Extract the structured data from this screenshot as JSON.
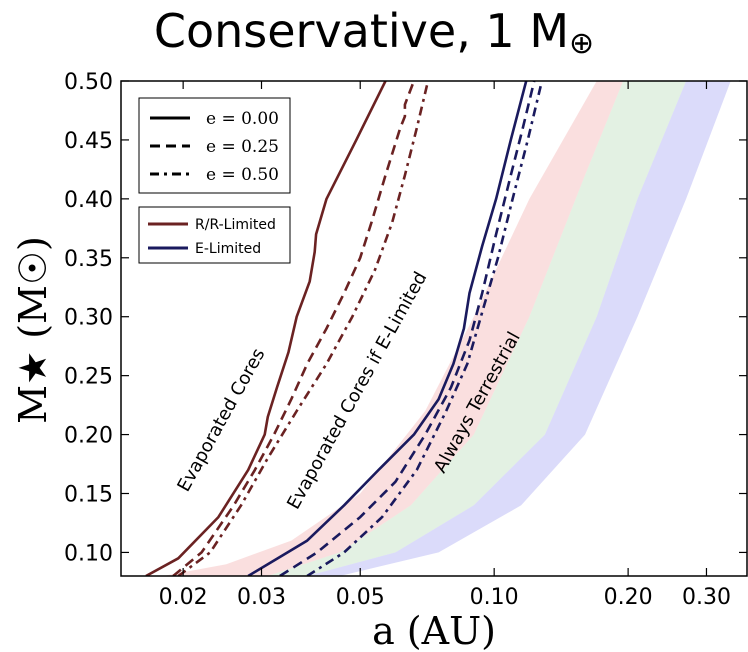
{
  "chart_data": {
    "type": "area",
    "title": "Conservative, 1 M",
    "title_sub": "⊕",
    "xlabel": "a (AU)",
    "ylabel": "M★ (M☉)",
    "xscale": "log",
    "xlim": [
      0.0145,
      0.37
    ],
    "ylim": [
      0.08,
      0.5
    ],
    "xticks": [
      {
        "value": 0.02,
        "label": "0.02"
      },
      {
        "value": 0.03,
        "label": "0.03"
      },
      {
        "value": 0.05,
        "label": "0.05"
      },
      {
        "value": 0.1,
        "label": "0.10"
      },
      {
        "value": 0.2,
        "label": "0.20"
      },
      {
        "value": 0.3,
        "label": "0.30"
      }
    ],
    "yticks": [
      {
        "value": 0.1,
        "label": "0.10"
      },
      {
        "value": 0.15,
        "label": "0.15"
      },
      {
        "value": 0.2,
        "label": "0.20"
      },
      {
        "value": 0.25,
        "label": "0.25"
      },
      {
        "value": 0.3,
        "label": "0.30"
      },
      {
        "value": 0.35,
        "label": "0.35"
      },
      {
        "value": 0.4,
        "label": "0.40"
      },
      {
        "value": 0.45,
        "label": "0.45"
      },
      {
        "value": 0.5,
        "label": "0.50"
      }
    ],
    "bands": [
      {
        "color": "#f5b8b8",
        "opacity": 0.45,
        "left": [
          [
            0.018,
            0.08
          ],
          [
            0.025,
            0.09
          ],
          [
            0.035,
            0.11
          ],
          [
            0.05,
            0.15
          ],
          [
            0.07,
            0.22
          ],
          [
            0.09,
            0.3
          ],
          [
            0.12,
            0.4
          ],
          [
            0.17,
            0.5
          ]
        ],
        "right": [
          [
            0.031,
            0.08
          ],
          [
            0.045,
            0.1
          ],
          [
            0.065,
            0.14
          ],
          [
            0.09,
            0.2
          ],
          [
            0.12,
            0.3
          ],
          [
            0.16,
            0.42
          ],
          [
            0.195,
            0.5
          ]
        ]
      },
      {
        "color": "#b8ddb8",
        "opacity": 0.4,
        "left": [
          [
            0.031,
            0.08
          ],
          [
            0.045,
            0.1
          ],
          [
            0.065,
            0.14
          ],
          [
            0.09,
            0.2
          ],
          [
            0.12,
            0.3
          ],
          [
            0.16,
            0.42
          ],
          [
            0.195,
            0.5
          ]
        ],
        "right": [
          [
            0.038,
            0.08
          ],
          [
            0.06,
            0.1
          ],
          [
            0.09,
            0.14
          ],
          [
            0.13,
            0.2
          ],
          [
            0.17,
            0.3
          ],
          [
            0.21,
            0.4
          ],
          [
            0.27,
            0.5
          ]
        ]
      },
      {
        "color": "#b8b8f5",
        "opacity": 0.5,
        "left": [
          [
            0.038,
            0.08
          ],
          [
            0.06,
            0.1
          ],
          [
            0.09,
            0.14
          ],
          [
            0.13,
            0.2
          ],
          [
            0.17,
            0.3
          ],
          [
            0.21,
            0.4
          ],
          [
            0.27,
            0.5
          ]
        ],
        "right": [
          [
            0.045,
            0.08
          ],
          [
            0.075,
            0.1
          ],
          [
            0.115,
            0.14
          ],
          [
            0.16,
            0.2
          ],
          [
            0.21,
            0.3
          ],
          [
            0.27,
            0.4
          ],
          [
            0.34,
            0.5
          ]
        ]
      }
    ],
    "series": [
      {
        "group": "R/R-Limited",
        "ecc": "e = 0.00",
        "color": "#6b2222",
        "dash": "solid",
        "points": [
          [
            0.0165,
            0.08
          ],
          [
            0.0195,
            0.095
          ],
          [
            0.024,
            0.13
          ],
          [
            0.028,
            0.17
          ],
          [
            0.0305,
            0.2
          ],
          [
            0.031,
            0.215
          ],
          [
            0.0325,
            0.24
          ],
          [
            0.0345,
            0.27
          ],
          [
            0.036,
            0.3
          ],
          [
            0.0385,
            0.33
          ],
          [
            0.0395,
            0.355
          ],
          [
            0.0398,
            0.37
          ],
          [
            0.042,
            0.4
          ],
          [
            0.049,
            0.45
          ],
          [
            0.057,
            0.5
          ]
        ]
      },
      {
        "group": "R/R-Limited",
        "ecc": "e = 0.25",
        "color": "#6b2222",
        "dash": "dashed",
        "points": [
          [
            0.019,
            0.08
          ],
          [
            0.022,
            0.1
          ],
          [
            0.026,
            0.14
          ],
          [
            0.029,
            0.17
          ],
          [
            0.032,
            0.2
          ],
          [
            0.035,
            0.23
          ],
          [
            0.038,
            0.26
          ],
          [
            0.042,
            0.29
          ],
          [
            0.046,
            0.32
          ],
          [
            0.05,
            0.35
          ],
          [
            0.053,
            0.38
          ],
          [
            0.057,
            0.42
          ],
          [
            0.0615,
            0.46
          ],
          [
            0.063,
            0.47
          ],
          [
            0.063,
            0.48
          ],
          [
            0.066,
            0.5
          ]
        ]
      },
      {
        "group": "R/R-Limited",
        "ecc": "e = 0.50",
        "color": "#6b2222",
        "dash": "dashdot",
        "points": [
          [
            0.0195,
            0.08
          ],
          [
            0.023,
            0.1
          ],
          [
            0.027,
            0.14
          ],
          [
            0.031,
            0.18
          ],
          [
            0.036,
            0.22
          ],
          [
            0.042,
            0.26
          ],
          [
            0.048,
            0.3
          ],
          [
            0.054,
            0.34
          ],
          [
            0.059,
            0.38
          ],
          [
            0.063,
            0.42
          ],
          [
            0.067,
            0.46
          ],
          [
            0.071,
            0.5
          ]
        ]
      },
      {
        "group": "E-Limited",
        "ecc": "e = 0.00",
        "color": "#1a1a5e",
        "dash": "solid",
        "points": [
          [
            0.028,
            0.08
          ],
          [
            0.031,
            0.09
          ],
          [
            0.038,
            0.11
          ],
          [
            0.046,
            0.14
          ],
          [
            0.055,
            0.17
          ],
          [
            0.066,
            0.2
          ],
          [
            0.075,
            0.23
          ],
          [
            0.081,
            0.26
          ],
          [
            0.0855,
            0.29
          ],
          [
            0.088,
            0.32
          ],
          [
            0.094,
            0.36
          ],
          [
            0.101,
            0.4
          ],
          [
            0.109,
            0.45
          ],
          [
            0.118,
            0.5
          ]
        ]
      },
      {
        "group": "E-Limited",
        "ecc": "e = 0.25",
        "color": "#1a1a5e",
        "dash": "dashed",
        "points": [
          [
            0.033,
            0.08
          ],
          [
            0.04,
            0.1
          ],
          [
            0.05,
            0.13
          ],
          [
            0.06,
            0.16
          ],
          [
            0.07,
            0.2
          ],
          [
            0.08,
            0.24
          ],
          [
            0.088,
            0.28
          ],
          [
            0.094,
            0.32
          ],
          [
            0.101,
            0.37
          ],
          [
            0.109,
            0.42
          ],
          [
            0.116,
            0.46
          ],
          [
            0.123,
            0.5
          ]
        ]
      },
      {
        "group": "E-Limited",
        "ecc": "e = 0.50",
        "color": "#1a1a5e",
        "dash": "dashdot",
        "points": [
          [
            0.038,
            0.08
          ],
          [
            0.046,
            0.1
          ],
          [
            0.056,
            0.13
          ],
          [
            0.067,
            0.17
          ],
          [
            0.078,
            0.22
          ],
          [
            0.087,
            0.26
          ],
          [
            0.095,
            0.31
          ],
          [
            0.102,
            0.35
          ],
          [
            0.11,
            0.4
          ],
          [
            0.119,
            0.45
          ],
          [
            0.128,
            0.5
          ]
        ]
      }
    ],
    "annotations": [
      {
        "text": "Evaporated Cores",
        "x": 0.025,
        "y": 0.21,
        "angle": -61
      },
      {
        "text": "Evaporated Cores if E-Limited",
        "x": 0.0505,
        "y": 0.235,
        "angle": -61
      },
      {
        "text": "Always Terrestrial",
        "x": 0.094,
        "y": 0.225,
        "angle": -61
      }
    ],
    "legend_ecc": {
      "placement": "top-left",
      "entries": [
        {
          "label": "e = 0.00",
          "dash": "solid"
        },
        {
          "label": "e = 0.25",
          "dash": "dashed"
        },
        {
          "label": "e = 0.50",
          "dash": "dashdot"
        }
      ]
    },
    "legend_limit": {
      "placement": "upper-left",
      "entries": [
        {
          "label": "R/R-Limited",
          "color": "#6b2222"
        },
        {
          "label": "E-Limited",
          "color": "#1a1a5e"
        }
      ]
    }
  }
}
